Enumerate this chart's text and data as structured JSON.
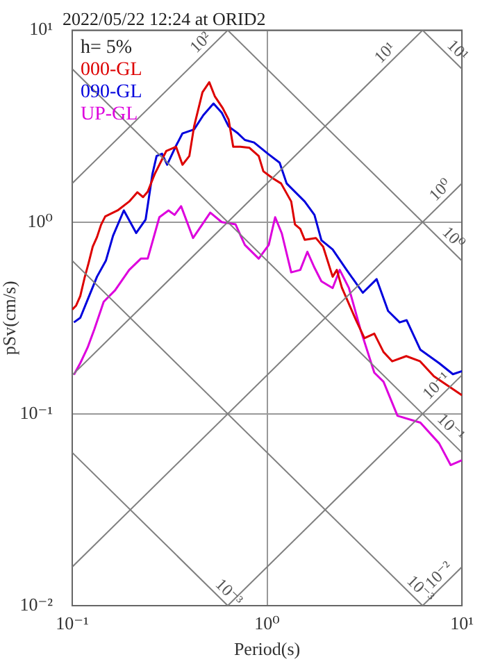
{
  "chart_data": {
    "type": "line",
    "title": "2022/05/22 12:24 at ORID2",
    "xlabel": "Period(s)",
    "ylabel": "pSv(cm/s)",
    "log": "xy",
    "grid": true,
    "legend": "top left",
    "marker": "none",
    "line_style": "solid",
    "xlim": [
      0.1,
      10
    ],
    "xticks": [
      {
        "value": 0.1,
        "label": "10⁻¹"
      },
      {
        "value": 1,
        "label": "10⁰"
      },
      {
        "value": 10,
        "label": "10¹"
      }
    ],
    "ylim": [
      0.01,
      10
    ],
    "yticks": [
      {
        "value": 0.01,
        "label": "10⁻²"
      },
      {
        "value": 0.1,
        "label": "10⁻¹"
      },
      {
        "value": 1,
        "label": "10⁰"
      },
      {
        "value": 10,
        "label": "10¹"
      }
    ],
    "annotations": [
      "h= 5%",
      {
        "text": "10²",
        "x": 0.497,
        "y": 7.91
      },
      {
        "text": "10¹",
        "x": 4.39,
        "y": 6.99
      },
      {
        "text": "10⁰",
        "x": 8.45,
        "y": 1.345
      },
      {
        "text": "10⁻¹",
        "x": 8.06,
        "y": 0.1283
      },
      {
        "text": "10⁻²",
        "x": 8.3,
        "y": 0.01321
      },
      {
        "text": "10¹",
        "x": 8.73,
        "y": 7.2
      },
      {
        "text": "10⁰",
        "x": 8.3,
        "y": 0.757
      },
      {
        "text": "10⁻¹",
        "x": 8.06,
        "y": 0.078
      },
      {
        "text": "10⁻³",
        "x": 5.62,
        "y": 0.01118
      },
      {
        "text": "10⁻³",
        "x": 0.585,
        "y": 0.01074
      }
    ],
    "series": [
      {
        "color": "#7f7f7f",
        "x": [
          0.1,
          0.6283
        ],
        "values": [
          1.592,
          10
        ]
      },
      {
        "color": "#7f7f7f",
        "x": [
          0.1,
          6.283
        ],
        "values": [
          0.1592,
          10
        ]
      },
      {
        "color": "#7f7f7f",
        "x": [
          0.1,
          10
        ],
        "values": [
          0.01592,
          1.592
        ]
      },
      {
        "color": "#7f7f7f",
        "x": [
          0.6283,
          10
        ],
        "values": [
          0.01,
          0.1592
        ]
      },
      {
        "color": "#7f7f7f",
        "x": [
          6.283,
          10
        ],
        "values": [
          0.01,
          0.01592
        ]
      },
      {
        "color": "#7f7f7f",
        "x": [
          6.283,
          10
        ],
        "values": [
          10,
          6.283
        ]
      },
      {
        "color": "#7f7f7f",
        "x": [
          0.6283,
          10
        ],
        "values": [
          10,
          0.6283
        ]
      },
      {
        "color": "#7f7f7f",
        "x": [
          0.1,
          10
        ],
        "values": [
          6.283,
          0.06283
        ]
      },
      {
        "color": "#7f7f7f",
        "x": [
          0.1,
          6.283
        ],
        "values": [
          0.6283,
          0.01
        ]
      },
      {
        "color": "#7f7f7f",
        "x": [
          0.1,
          0.6283
        ],
        "values": [
          0.06283,
          0.01
        ]
      },
      {
        "name": "000-GL",
        "color": "#dd0000",
        "x": [
          0.1,
          0.1047,
          0.11,
          0.1156,
          0.1213,
          0.1274,
          0.134,
          0.1406,
          0.1477,
          0.171,
          0.196,
          0.216,
          0.231,
          0.244,
          0.265,
          0.304,
          0.341,
          0.368,
          0.399,
          0.422,
          0.466,
          0.505,
          0.539,
          0.592,
          0.635,
          0.67,
          0.728,
          0.812,
          0.906,
          0.957,
          1.07,
          1.18,
          1.33,
          1.39,
          1.48,
          1.56,
          1.78,
          1.94,
          2.17,
          2.28,
          2.42,
          2.86,
          3.16,
          3.55,
          3.96,
          4.39,
          5.18,
          6.1,
          7.18,
          10
        ],
        "values": [
          0.35,
          0.367,
          0.412,
          0.51,
          0.611,
          0.744,
          0.835,
          0.968,
          1.07,
          1.15,
          1.28,
          1.43,
          1.35,
          1.44,
          1.78,
          2.35,
          2.47,
          1.99,
          2.21,
          3.15,
          4.75,
          5.36,
          4.53,
          3.93,
          3.42,
          2.47,
          2.47,
          2.44,
          2.21,
          1.84,
          1.69,
          1.59,
          1.28,
          0.973,
          0.921,
          0.808,
          0.826,
          0.744,
          0.519,
          0.563,
          0.455,
          0.308,
          0.248,
          0.262,
          0.21,
          0.188,
          0.2,
          0.188,
          0.157,
          0.125
        ]
      },
      {
        "name": "090-GL",
        "color": "#0000dd",
        "x": [
          0.102,
          0.11,
          0.119,
          0.134,
          0.149,
          0.162,
          0.184,
          0.213,
          0.238,
          0.258,
          0.271,
          0.289,
          0.307,
          0.339,
          0.368,
          0.422,
          0.471,
          0.531,
          0.585,
          0.635,
          0.709,
          0.769,
          0.857,
          1.01,
          1.16,
          1.26,
          1.56,
          1.75,
          1.9,
          2.17,
          2.56,
          3.1,
          3.65,
          4.18,
          4.79,
          5.2,
          6.12,
          7.63,
          8.99,
          10
        ],
        "values": [
          0.3,
          0.317,
          0.386,
          0.519,
          0.631,
          0.849,
          1.15,
          0.877,
          1.03,
          1.78,
          2.21,
          2.27,
          1.99,
          2.47,
          2.9,
          3.04,
          3.61,
          4.15,
          3.72,
          3.15,
          2.9,
          2.68,
          2.6,
          2.27,
          2.04,
          1.59,
          1.28,
          1.09,
          0.804,
          0.72,
          0.563,
          0.428,
          0.504,
          0.344,
          0.3,
          0.308,
          0.216,
          0.184,
          0.161,
          0.167
        ]
      },
      {
        "name": "UP-GL",
        "color": "#dd00dd",
        "x": [
          0.102,
          0.11,
          0.12,
          0.13,
          0.145,
          0.166,
          0.196,
          0.225,
          0.244,
          0.28,
          0.312,
          0.335,
          0.362,
          0.417,
          0.511,
          0.585,
          0.689,
          0.769,
          0.906,
          1.02,
          1.1,
          1.19,
          1.33,
          1.48,
          1.61,
          1.75,
          1.9,
          2.17,
          2.36,
          2.63,
          3.01,
          3.55,
          3.96,
          4.67,
          6.12,
          7.63,
          8.75,
          10
        ],
        "values": [
          0.16,
          0.184,
          0.222,
          0.277,
          0.384,
          0.441,
          0.563,
          0.645,
          0.645,
          1.06,
          1.15,
          1.09,
          1.21,
          0.826,
          1.12,
          1.0,
          0.973,
          0.76,
          0.645,
          0.76,
          1.06,
          0.873,
          0.547,
          0.563,
          0.7,
          0.579,
          0.491,
          0.453,
          0.563,
          0.453,
          0.277,
          0.164,
          0.147,
          0.0977,
          0.09,
          0.0703,
          0.0541,
          0.0573
        ]
      }
    ]
  }
}
